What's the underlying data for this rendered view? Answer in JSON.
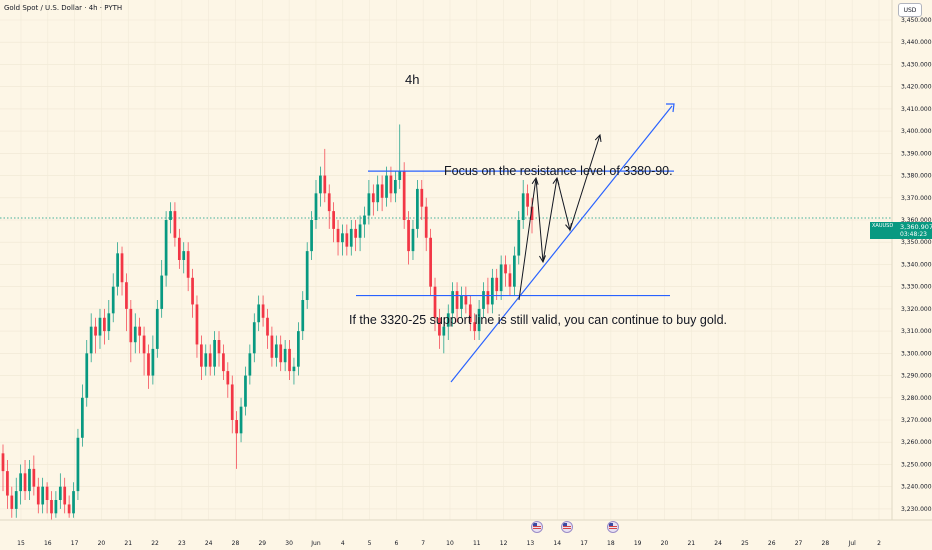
{
  "header": {
    "symbol_title": "Gold Spot / U.S. Dollar · 4h · PYTH",
    "currency": "USD"
  },
  "annotations": {
    "timeframe": "4h",
    "resistance_note": "Focus on the resistance level of 3380-90.",
    "support_note": "If the 3320-25 support line is still valid, you can continue to buy gold."
  },
  "price_tag": {
    "symbol": "XAUUSD",
    "price": "3,360.907",
    "countdown": "03:48:23"
  },
  "colors": {
    "background": "#fdf6e6",
    "up": "#089981",
    "down": "#f23645",
    "drawing": "#2962ff",
    "arrow": "#131722"
  },
  "chart_data": {
    "type": "candlestick",
    "interval": "4h",
    "instrument": "XAUUSD",
    "ylim": [
      3225,
      3459
    ],
    "yticks": [
      "3,230.000",
      "3,240.000",
      "3,250.000",
      "3,260.000",
      "3,270.000",
      "3,280.000",
      "3,290.000",
      "3,300.000",
      "3,310.000",
      "3,320.000",
      "3,330.000",
      "3,340.000",
      "3,350.000",
      "3,360.000",
      "3,370.000",
      "3,380.000",
      "3,390.000",
      "3,400.000",
      "3,410.000",
      "3,420.000",
      "3,430.000",
      "3,440.000",
      "3,450.000"
    ],
    "xticks": [
      "15",
      "16",
      "17",
      "20",
      "21",
      "22",
      "23",
      "24",
      "28",
      "29",
      "30",
      "Jun",
      "4",
      "5",
      "6",
      "7",
      "10",
      "11",
      "12",
      "13",
      "14",
      "17",
      "18",
      "19",
      "20",
      "21",
      "24",
      "25",
      "26",
      "27",
      "28",
      "Jul",
      "2"
    ],
    "levels": {
      "resistance": 3382,
      "support": 3326
    },
    "current_price": 3360.907,
    "candles": [
      [
        3255,
        3247,
        3259,
        3238
      ],
      [
        3247,
        3236,
        3252,
        3230
      ],
      [
        3236,
        3230,
        3240,
        3226
      ],
      [
        3230,
        3238,
        3244,
        3226
      ],
      [
        3238,
        3246,
        3250,
        3232
      ],
      [
        3246,
        3238,
        3252,
        3234
      ],
      [
        3238,
        3248,
        3252,
        3234
      ],
      [
        3248,
        3240,
        3254,
        3236
      ],
      [
        3240,
        3232,
        3244,
        3228
      ],
      [
        3232,
        3240,
        3244,
        3228
      ],
      [
        3240,
        3234,
        3242,
        3228
      ],
      [
        3234,
        3228,
        3238,
        3225
      ],
      [
        3228,
        3234,
        3238,
        3226
      ],
      [
        3234,
        3240,
        3246,
        3230
      ],
      [
        3240,
        3232,
        3244,
        3228
      ],
      [
        3232,
        3228,
        3236,
        3226
      ],
      [
        3228,
        3238,
        3242,
        3226
      ],
      [
        3238,
        3262,
        3266,
        3234
      ],
      [
        3262,
        3280,
        3286,
        3258
      ],
      [
        3280,
        3300,
        3306,
        3276
      ],
      [
        3300,
        3312,
        3318,
        3296
      ],
      [
        3312,
        3308,
        3316,
        3300
      ],
      [
        3308,
        3316,
        3320,
        3302
      ],
      [
        3316,
        3310,
        3320,
        3304
      ],
      [
        3310,
        3318,
        3324,
        3306
      ],
      [
        3318,
        3330,
        3336,
        3314
      ],
      [
        3330,
        3345,
        3350,
        3326
      ],
      [
        3345,
        3332,
        3348,
        3326
      ],
      [
        3332,
        3320,
        3336,
        3310
      ],
      [
        3320,
        3305,
        3324,
        3296
      ],
      [
        3305,
        3312,
        3318,
        3300
      ],
      [
        3312,
        3308,
        3316,
        3300
      ],
      [
        3308,
        3300,
        3312,
        3290
      ],
      [
        3300,
        3290,
        3304,
        3284
      ],
      [
        3290,
        3302,
        3308,
        3286
      ],
      [
        3302,
        3320,
        3324,
        3298
      ],
      [
        3320,
        3335,
        3342,
        3316
      ],
      [
        3335,
        3360,
        3364,
        3330
      ],
      [
        3360,
        3364,
        3368,
        3354
      ],
      [
        3364,
        3352,
        3368,
        3348
      ],
      [
        3352,
        3342,
        3356,
        3338
      ],
      [
        3342,
        3346,
        3350,
        3336
      ],
      [
        3346,
        3334,
        3350,
        3328
      ],
      [
        3334,
        3322,
        3338,
        3316
      ],
      [
        3322,
        3304,
        3326,
        3298
      ],
      [
        3304,
        3294,
        3308,
        3288
      ],
      [
        3294,
        3300,
        3304,
        3290
      ],
      [
        3300,
        3294,
        3304,
        3290
      ],
      [
        3294,
        3306,
        3310,
        3290
      ],
      [
        3306,
        3300,
        3310,
        3294
      ],
      [
        3300,
        3292,
        3304,
        3288
      ],
      [
        3292,
        3286,
        3296,
        3280
      ],
      [
        3286,
        3270,
        3290,
        3264
      ],
      [
        3270,
        3264,
        3274,
        3248
      ],
      [
        3264,
        3276,
        3280,
        3260
      ],
      [
        3276,
        3290,
        3294,
        3272
      ],
      [
        3290,
        3300,
        3304,
        3286
      ],
      [
        3300,
        3314,
        3318,
        3296
      ],
      [
        3314,
        3322,
        3326,
        3310
      ],
      [
        3322,
        3316,
        3326,
        3312
      ],
      [
        3316,
        3308,
        3320,
        3302
      ],
      [
        3308,
        3298,
        3312,
        3294
      ],
      [
        3298,
        3304,
        3308,
        3294
      ],
      [
        3304,
        3296,
        3308,
        3292
      ],
      [
        3296,
        3302,
        3306,
        3292
      ],
      [
        3302,
        3292,
        3306,
        3288
      ],
      [
        3292,
        3294,
        3298,
        3286
      ],
      [
        3294,
        3310,
        3314,
        3290
      ],
      [
        3310,
        3324,
        3328,
        3306
      ],
      [
        3324,
        3346,
        3350,
        3320
      ],
      [
        3346,
        3360,
        3364,
        3342
      ],
      [
        3360,
        3372,
        3378,
        3356
      ],
      [
        3372,
        3380,
        3384,
        3366
      ],
      [
        3380,
        3372,
        3392,
        3368
      ],
      [
        3372,
        3364,
        3376,
        3356
      ],
      [
        3364,
        3356,
        3368,
        3350
      ],
      [
        3356,
        3350,
        3360,
        3344
      ],
      [
        3350,
        3354,
        3358,
        3344
      ],
      [
        3354,
        3348,
        3358,
        3344
      ],
      [
        3348,
        3356,
        3360,
        3344
      ],
      [
        3356,
        3352,
        3360,
        3346
      ],
      [
        3352,
        3358,
        3362,
        3346
      ],
      [
        3358,
        3362,
        3366,
        3352
      ],
      [
        3362,
        3372,
        3378,
        3358
      ],
      [
        3372,
        3368,
        3376,
        3362
      ],
      [
        3368,
        3376,
        3380,
        3364
      ],
      [
        3376,
        3370,
        3380,
        3364
      ],
      [
        3370,
        3380,
        3384,
        3366
      ],
      [
        3380,
        3372,
        3384,
        3368
      ],
      [
        3372,
        3378,
        3382,
        3368
      ],
      [
        3378,
        3382,
        3403,
        3374
      ],
      [
        3382,
        3360,
        3386,
        3356
      ],
      [
        3360,
        3346,
        3364,
        3340
      ],
      [
        3346,
        3356,
        3360,
        3342
      ],
      [
        3356,
        3374,
        3378,
        3352
      ],
      [
        3374,
        3366,
        3378,
        3360
      ],
      [
        3366,
        3352,
        3370,
        3346
      ],
      [
        3352,
        3330,
        3356,
        3326
      ],
      [
        3330,
        3316,
        3334,
        3310
      ],
      [
        3316,
        3308,
        3320,
        3302
      ],
      [
        3308,
        3312,
        3316,
        3300
      ],
      [
        3312,
        3318,
        3322,
        3306
      ],
      [
        3318,
        3328,
        3332,
        3312
      ],
      [
        3328,
        3320,
        3332,
        3314
      ],
      [
        3320,
        3326,
        3330,
        3316
      ],
      [
        3326,
        3322,
        3330,
        3318
      ],
      [
        3322,
        3314,
        3326,
        3310
      ],
      [
        3314,
        3310,
        3318,
        3306
      ],
      [
        3310,
        3320,
        3324,
        3306
      ],
      [
        3320,
        3328,
        3332,
        3316
      ],
      [
        3328,
        3322,
        3334,
        3318
      ],
      [
        3322,
        3334,
        3338,
        3318
      ],
      [
        3334,
        3328,
        3338,
        3324
      ],
      [
        3328,
        3340,
        3344,
        3324
      ],
      [
        3340,
        3336,
        3344,
        3330
      ],
      [
        3336,
        3330,
        3340,
        3326
      ],
      [
        3330,
        3344,
        3348,
        3326
      ],
      [
        3344,
        3360,
        3364,
        3340
      ],
      [
        3360,
        3372,
        3378,
        3356
      ],
      [
        3372,
        3366,
        3376,
        3362
      ],
      [
        3366,
        3360,
        3370,
        3354
      ]
    ]
  }
}
